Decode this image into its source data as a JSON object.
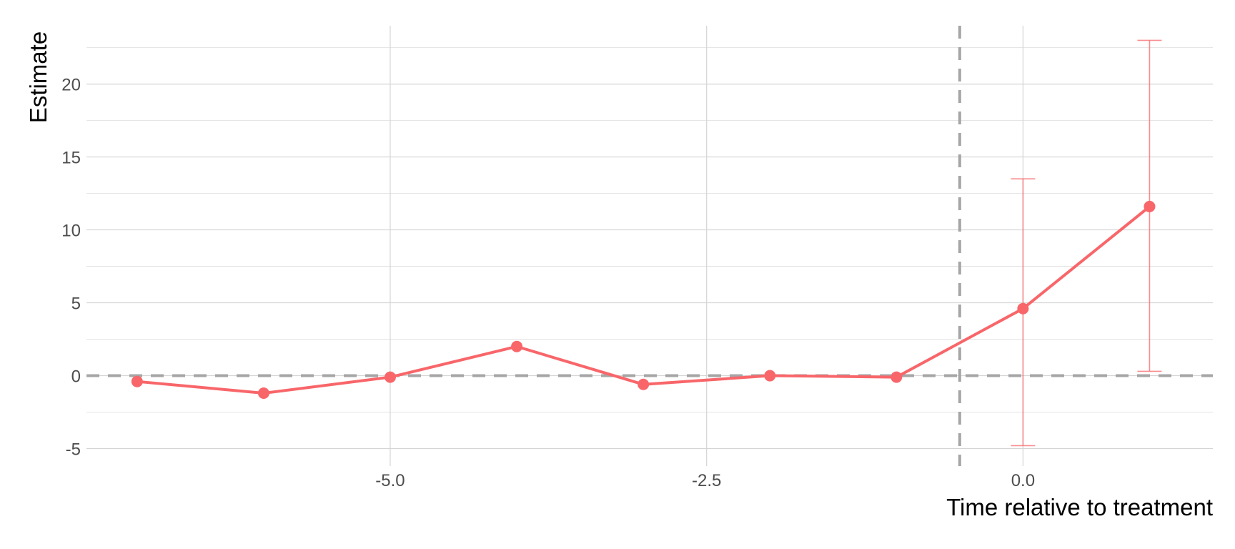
{
  "chart_data": {
    "type": "line",
    "title": "",
    "xlabel": "Time relative to treatment",
    "ylabel": "Estimate",
    "xlim": [
      -7.4,
      1.5
    ],
    "ylim": [
      -6.2,
      24.0
    ],
    "x_ticks": [
      -5.0,
      -2.5,
      0.0
    ],
    "x_tick_labels": [
      "-5.0",
      "-2.5",
      "0.0"
    ],
    "y_ticks": [
      -5,
      0,
      5,
      10,
      15,
      20
    ],
    "y_tick_labels": [
      "-5",
      "0",
      "5",
      "10",
      "15",
      "20"
    ],
    "grid": true,
    "legend": "none",
    "reference_lines": {
      "vertical_x": -0.5,
      "horizontal_y": 0
    },
    "series": [
      {
        "color": "#F8666A",
        "points": [
          {
            "x": -7,
            "y": -0.4
          },
          {
            "x": -6,
            "y": -1.2
          },
          {
            "x": -5,
            "y": -0.1
          },
          {
            "x": -4,
            "y": 2.0
          },
          {
            "x": -3,
            "y": -0.6
          },
          {
            "x": -2,
            "y": 0.0
          },
          {
            "x": -1,
            "y": -0.1
          },
          {
            "x": 0,
            "y": 4.6,
            "ci_low": -4.8,
            "ci_high": 13.5
          },
          {
            "x": 1,
            "y": 11.6,
            "ci_low": 0.3,
            "ci_high": 23.0
          }
        ]
      }
    ]
  }
}
